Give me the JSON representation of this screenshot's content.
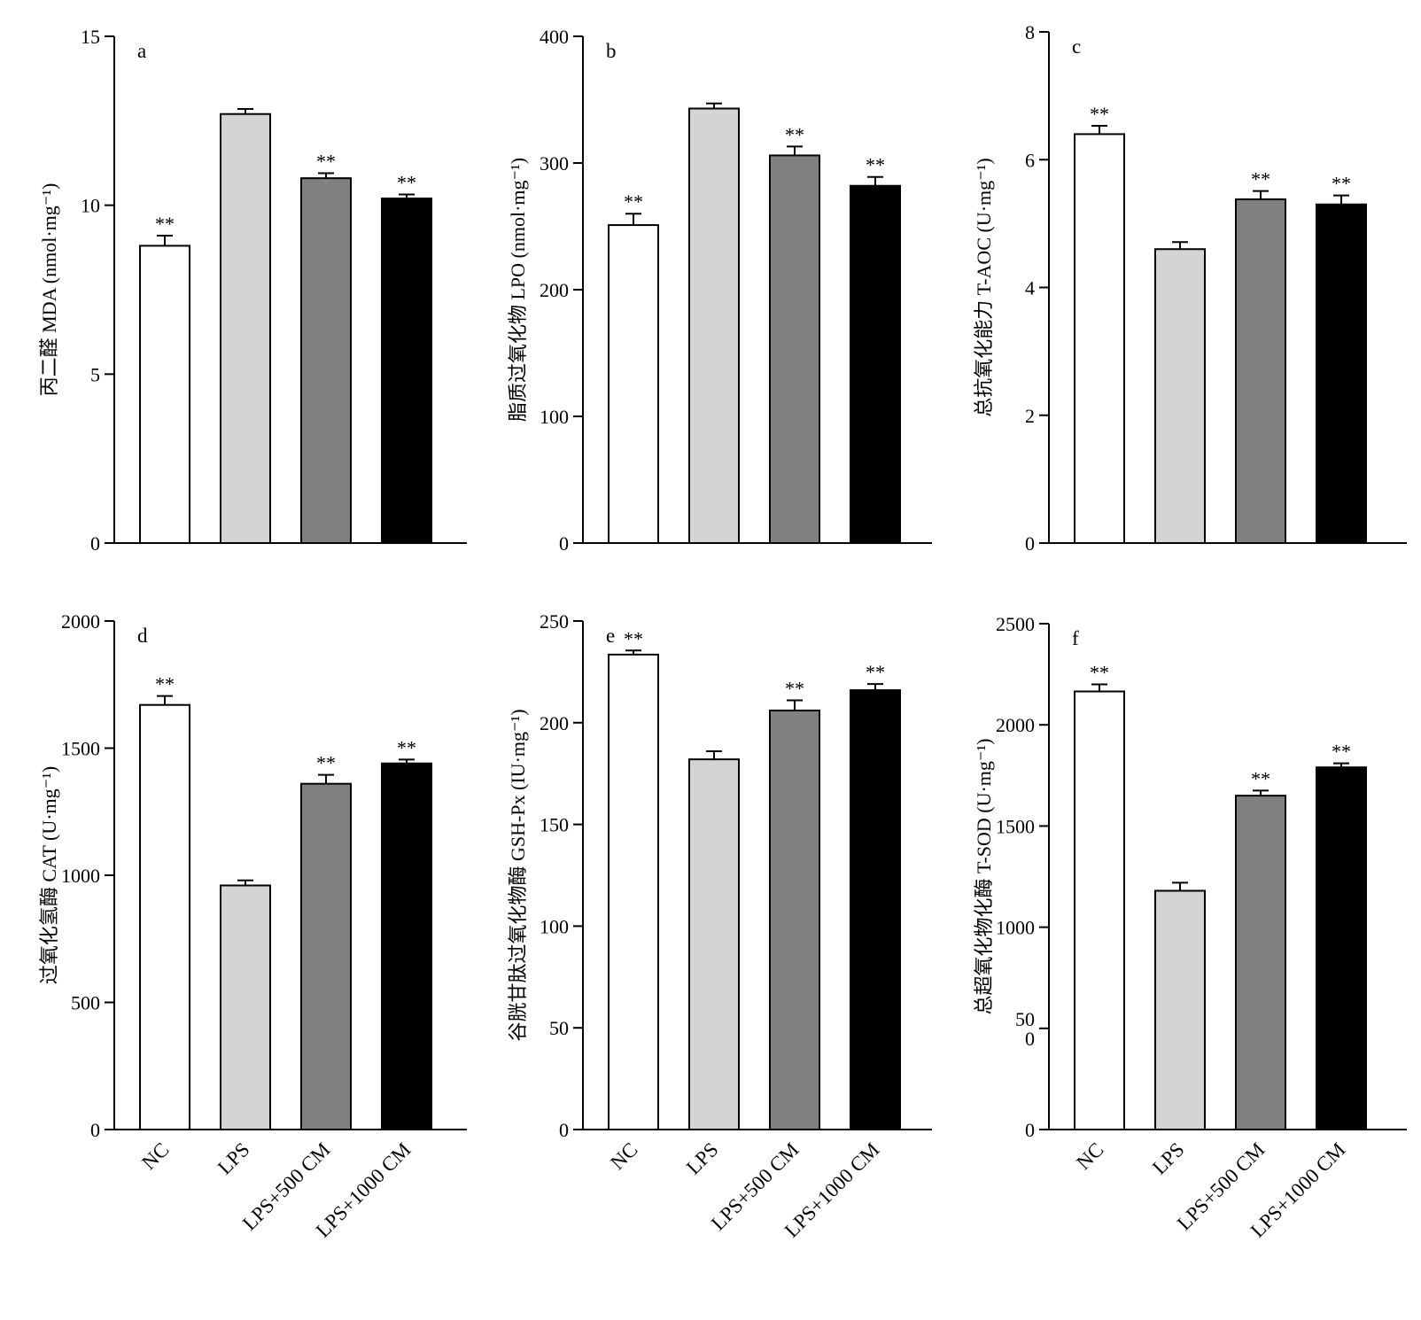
{
  "chart_data": [
    {
      "type": "bar",
      "panel": "a",
      "ylabel": "丙二醛 MDA (nmol·mg⁻¹)",
      "ylim": [
        0,
        15
      ],
      "yticks": [
        "0",
        "5",
        "10",
        "15"
      ],
      "categories": [
        "NC",
        "LPS",
        "LPS+500 CM",
        "LPS+1000 CM"
      ],
      "values": [
        8.8,
        12.7,
        10.8,
        10.2
      ],
      "errors": [
        0.3,
        0.15,
        0.15,
        0.12
      ],
      "significance": [
        "**",
        "",
        "**",
        "**"
      ]
    },
    {
      "type": "bar",
      "panel": "b",
      "ylabel": "脂质过氧化物 LPO (nmol·mg⁻¹)",
      "ylim": [
        0,
        400
      ],
      "yticks": [
        "0",
        "100",
        "200",
        "300",
        "400"
      ],
      "categories": [
        "NC",
        "LPS",
        "LPS+500 CM",
        "LPS+1000 CM"
      ],
      "values": [
        251,
        343,
        306,
        282
      ],
      "errors": [
        9,
        4,
        7,
        7
      ],
      "significance": [
        "**",
        "",
        "**",
        "**"
      ]
    },
    {
      "type": "bar",
      "panel": "c",
      "ylabel": "总抗氧化能力 T-AOC (U·mg⁻¹)",
      "ylim": [
        0,
        8
      ],
      "yticks": [
        "0",
        "2",
        "4",
        "6",
        "8"
      ],
      "categories": [
        "NC",
        "LPS",
        "LPS+500 CM",
        "LPS+1000 CM"
      ],
      "values": [
        6.4,
        4.6,
        5.38,
        5.3
      ],
      "errors": [
        0.13,
        0.11,
        0.13,
        0.14
      ],
      "significance": [
        "**",
        "",
        "**",
        "**"
      ]
    },
    {
      "type": "bar",
      "panel": "d",
      "ylabel": "过氧化氢酶 CAT (U·mg⁻¹)",
      "ylim": [
        0,
        2000
      ],
      "yticks": [
        "0",
        "500",
        "1000",
        "1500",
        "2000"
      ],
      "categories": [
        "NC",
        "LPS",
        "LPS+500 CM",
        "LPS+1000 CM"
      ],
      "values": [
        1670,
        960,
        1360,
        1440
      ],
      "errors": [
        35,
        20,
        35,
        15
      ],
      "significance": [
        "**",
        "",
        "**",
        "**"
      ]
    },
    {
      "type": "bar",
      "panel": "e",
      "ylabel": "谷胱甘肽过氧化物酶 GSH-Px (IU·mg⁻¹)",
      "ylim": [
        0,
        250
      ],
      "yticks": [
        "0",
        "50",
        "100",
        "150",
        "200",
        "250"
      ],
      "categories": [
        "NC",
        "LPS",
        "LPS+500 CM",
        "LPS+1000 CM"
      ],
      "values": [
        233.5,
        182,
        206,
        216
      ],
      "errors": [
        2,
        4,
        5,
        3
      ],
      "significance": [
        "**",
        "",
        "**",
        "**"
      ]
    },
    {
      "type": "bar",
      "panel": "f",
      "ylabel": "总超氧化物化酶 T-SOD (U·mg⁻¹)",
      "ylim": [
        0,
        2500
      ],
      "yticks": [
        "0",
        "50\n0",
        "1000",
        "1500",
        "2000",
        "2500"
      ],
      "categories": [
        "NC",
        "LPS",
        "LPS+500 CM",
        "LPS+1000 CM"
      ],
      "values": [
        2165,
        1180,
        1650,
        1790
      ],
      "errors": [
        35,
        40,
        25,
        20
      ],
      "significance": [
        "**",
        "",
        "**",
        "**"
      ]
    }
  ],
  "colors": {
    "bar_fills": [
      "#ffffff",
      "#d4d4d4",
      "#808080",
      "#000000"
    ],
    "stroke": "#000000"
  }
}
